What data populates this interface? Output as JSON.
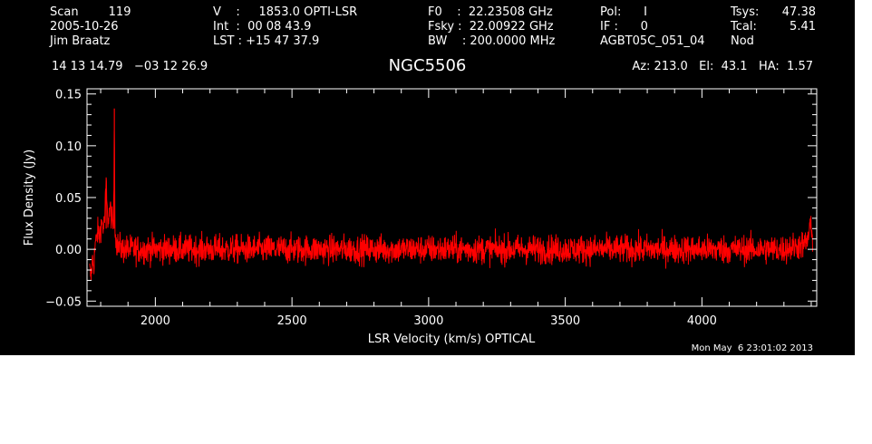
{
  "header": {
    "col1": [
      "Scan        119",
      "2005-10-26",
      "Jim Braatz"
    ],
    "col2": [
      "V    :     1853.0 OPTI-LSR",
      "Int  :  00 08 43.9",
      "LST : +15 47 37.9"
    ],
    "col3": [
      "F0    :  22.23508 GHz",
      "Fsky :  22.00922 GHz",
      "BW    : 200.0000 MHz"
    ],
    "col4": [
      "Pol:      I",
      "IF :      0",
      "AGBT05C_051_04"
    ],
    "col5_labels": [
      "Tsys:",
      "Tcal:",
      "Nod"
    ],
    "col5_values": [
      "47.38",
      "5.41",
      ""
    ],
    "coordinates": "14 13 14.79   −03 12 26.9",
    "target": "NGC5506",
    "az_el_ha": "Az: 213.0   El:  43.1   HA:  1.57"
  },
  "footer": {
    "timestamp": "Mon May  6 23:01:02 2013"
  },
  "colors": {
    "background": "#000000",
    "axes": "#ffffff",
    "trace": "#ff0000"
  },
  "chart_data": {
    "type": "line",
    "title": "NGC5506",
    "xlabel": "LSR Velocity (km/s) OPTICAL",
    "ylabel": "Flux Density (Jy)",
    "xlim": [
      1750,
      4420
    ],
    "ylim": [
      -0.055,
      0.155
    ],
    "x_ticks": [
      2000,
      2500,
      3000,
      3500,
      4000
    ],
    "x_tick_labels": [
      "2000",
      "2500",
      "3000",
      "3500",
      "4000"
    ],
    "y_ticks": [
      -0.05,
      0.0,
      0.05,
      0.1,
      0.15
    ],
    "y_tick_labels": [
      "−0.05",
      "0.00",
      "0.05",
      "0.10",
      "0.15"
    ],
    "grid": false,
    "noise_rms": 0.007,
    "series": [
      {
        "color": "#ff0000",
        "x": [
          1760,
          1765,
          1770,
          1775,
          1780,
          1785,
          1790,
          1795,
          1800,
          1805,
          1810,
          1815,
          1820,
          1825,
          1830,
          1835,
          1840,
          1845,
          1848,
          1850,
          1852,
          1854,
          1856,
          1860,
          1865,
          1870,
          1880,
          1900,
          2000,
          2200,
          2500,
          2800,
          3000,
          3300,
          3600,
          3900,
          4100,
          4300,
          4380,
          4390,
          4395,
          4400,
          4405
        ],
        "y": [
          -0.02,
          -0.027,
          -0.01,
          -0.015,
          0.005,
          0.01,
          0.018,
          0.012,
          0.022,
          0.026,
          0.02,
          0.03,
          0.066,
          0.028,
          0.033,
          0.04,
          0.03,
          0.02,
          0.04,
          0.136,
          0.03,
          0.015,
          0.008,
          0.005,
          0.003,
          0.002,
          0.0,
          0.0,
          0.0,
          0.0,
          0.0,
          0.0,
          0.0,
          0.0,
          0.0,
          0.0,
          0.0,
          0.0,
          0.005,
          0.012,
          0.025,
          0.015,
          0.01
        ]
      }
    ]
  }
}
